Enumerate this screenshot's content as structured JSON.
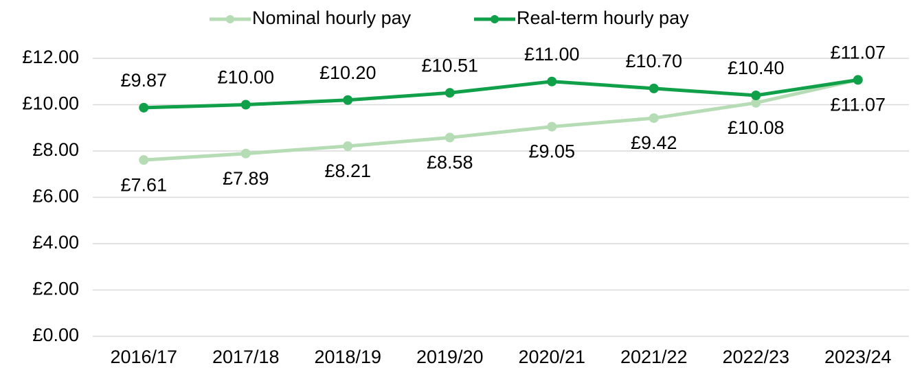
{
  "chart_data": {
    "type": "line",
    "categories": [
      "2016/17",
      "2017/18",
      "2018/19",
      "2019/20",
      "2020/21",
      "2021/22",
      "2022/23",
      "2023/24"
    ],
    "series": [
      {
        "name": "Nominal hourly pay",
        "color": "#b5dcb4",
        "values": [
          7.61,
          7.89,
          8.21,
          8.58,
          9.05,
          9.42,
          10.08,
          11.07
        ],
        "value_labels": [
          "£7.61",
          "£7.89",
          "£8.21",
          "£8.58",
          "£9.05",
          "£9.42",
          "£10.08",
          "£11.07"
        ]
      },
      {
        "name": "Real-term hourly pay",
        "color": "#10a04a",
        "values": [
          9.87,
          10.0,
          10.2,
          10.51,
          11.0,
          10.7,
          10.4,
          11.07
        ],
        "value_labels": [
          "£9.87",
          "£10.00",
          "£10.20",
          "£10.51",
          "£11.00",
          "£10.70",
          "£10.40",
          "£11.07"
        ]
      }
    ],
    "ylim": [
      0,
      12
    ],
    "yticks": [
      {
        "value": 0,
        "label": "£0.00"
      },
      {
        "value": 2,
        "label": "£2.00"
      },
      {
        "value": 4,
        "label": "£4.00"
      },
      {
        "value": 6,
        "label": "£6.00"
      },
      {
        "value": 8,
        "label": "£8.00"
      },
      {
        "value": 10,
        "label": "£10.00"
      },
      {
        "value": 12,
        "label": "£12.00"
      }
    ],
    "grid": true,
    "legend": "top"
  }
}
